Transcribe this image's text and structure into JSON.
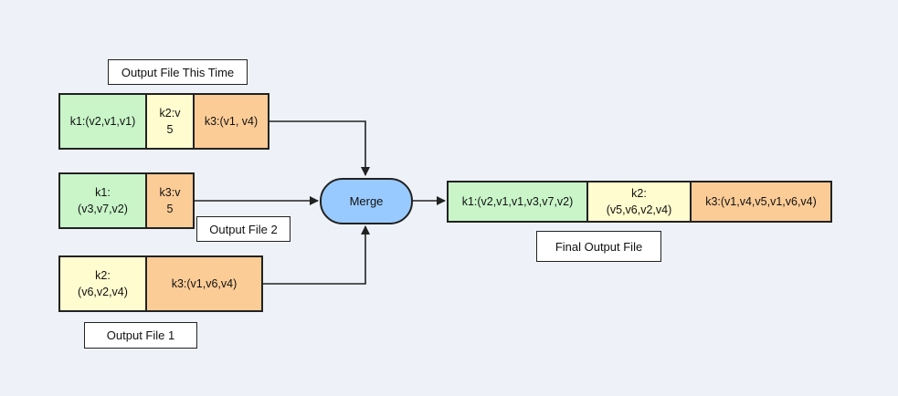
{
  "labels": {
    "this_time": "Output File This Time",
    "file2": "Output File 2",
    "file1": "Output File 1",
    "final": "Final Output File"
  },
  "merge": "Merge",
  "rows": {
    "this_time": [
      "k1:(v2,v1,v1)",
      "k2:v\n5",
      "k3:(v1, v4)"
    ],
    "file2": [
      "k1:\n(v3,v7,v2)",
      "k3:v\n5"
    ],
    "file1": [
      "k2:\n(v6,v2,v4)",
      "k3:(v1,v6,v4)"
    ],
    "final": [
      "k1:(v2,v1,v1,v3,v7,v2)",
      "k2:\n(v5,v6,v2,v4)",
      "k3:(v1,v4,v5,v1,v6,v4)"
    ]
  },
  "colors": {
    "background": "#eef2f8",
    "k1_fill": "#c9f5c9",
    "k2_fill": "#fffccf",
    "k3_fill": "#fccc97",
    "merge_fill": "#99caff",
    "stroke": "#222222"
  }
}
